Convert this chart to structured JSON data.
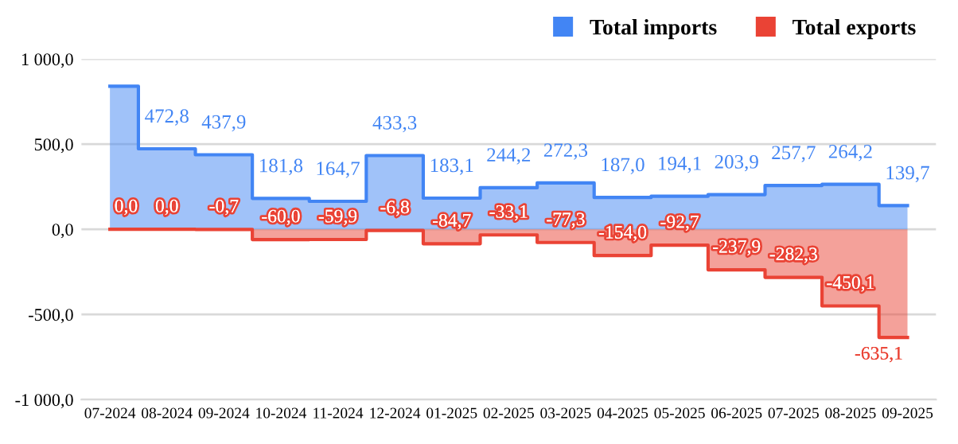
{
  "chart_data": {
    "type": "step",
    "categories": [
      "07-2024",
      "08-2024",
      "09-2024",
      "10-2024",
      "11-2024",
      "12-2024",
      "01-2025",
      "02-2025",
      "03-2025",
      "04-2025",
      "05-2025",
      "06-2025",
      "07-2025",
      "08-2025",
      "09-2025"
    ],
    "series": [
      {
        "name": "Total imports",
        "color": "#4285f4",
        "values": [
          840,
          472.8,
          437.9,
          181.8,
          164.7,
          433.3,
          183.1,
          244.2,
          272.3,
          187.0,
          194.1,
          203.9,
          257.7,
          264.2,
          139.7
        ],
        "value_labels": [
          null,
          "472,8",
          "437,9",
          "181,8",
          "164,7",
          "433,3",
          "183,1",
          "244,2",
          "272,3",
          "187,0",
          "194,1",
          "203,9",
          "257,7",
          "264,2",
          "139,7"
        ]
      },
      {
        "name": "Total exports",
        "color": "#ea4335",
        "values": [
          0.0,
          0.0,
          -0.7,
          -60.0,
          -59.9,
          -6.8,
          -84.7,
          -33.1,
          -77.3,
          -154.0,
          -92.7,
          -237.9,
          -282.3,
          -450.1,
          -635.1
        ],
        "value_labels": [
          "0,0",
          "0,0",
          "-0,7",
          "-60,0",
          "-59,9",
          "-6,8",
          "-84,7",
          "-33,1",
          "-77,3",
          "-154,0",
          "-92,7",
          "-237,9",
          "-282,3",
          "-450,1",
          "-635,1"
        ]
      }
    ],
    "ylim": [
      -1000,
      1000
    ],
    "yticks": [
      {
        "value": -1000,
        "label": "-1 000,0"
      },
      {
        "value": -500,
        "label": "-500,0"
      },
      {
        "value": 0,
        "label": "0,0"
      },
      {
        "value": 500,
        "label": "500,0"
      },
      {
        "value": 1000,
        "label": "1 000,0"
      }
    ],
    "grid": "y",
    "legend": "top right"
  }
}
